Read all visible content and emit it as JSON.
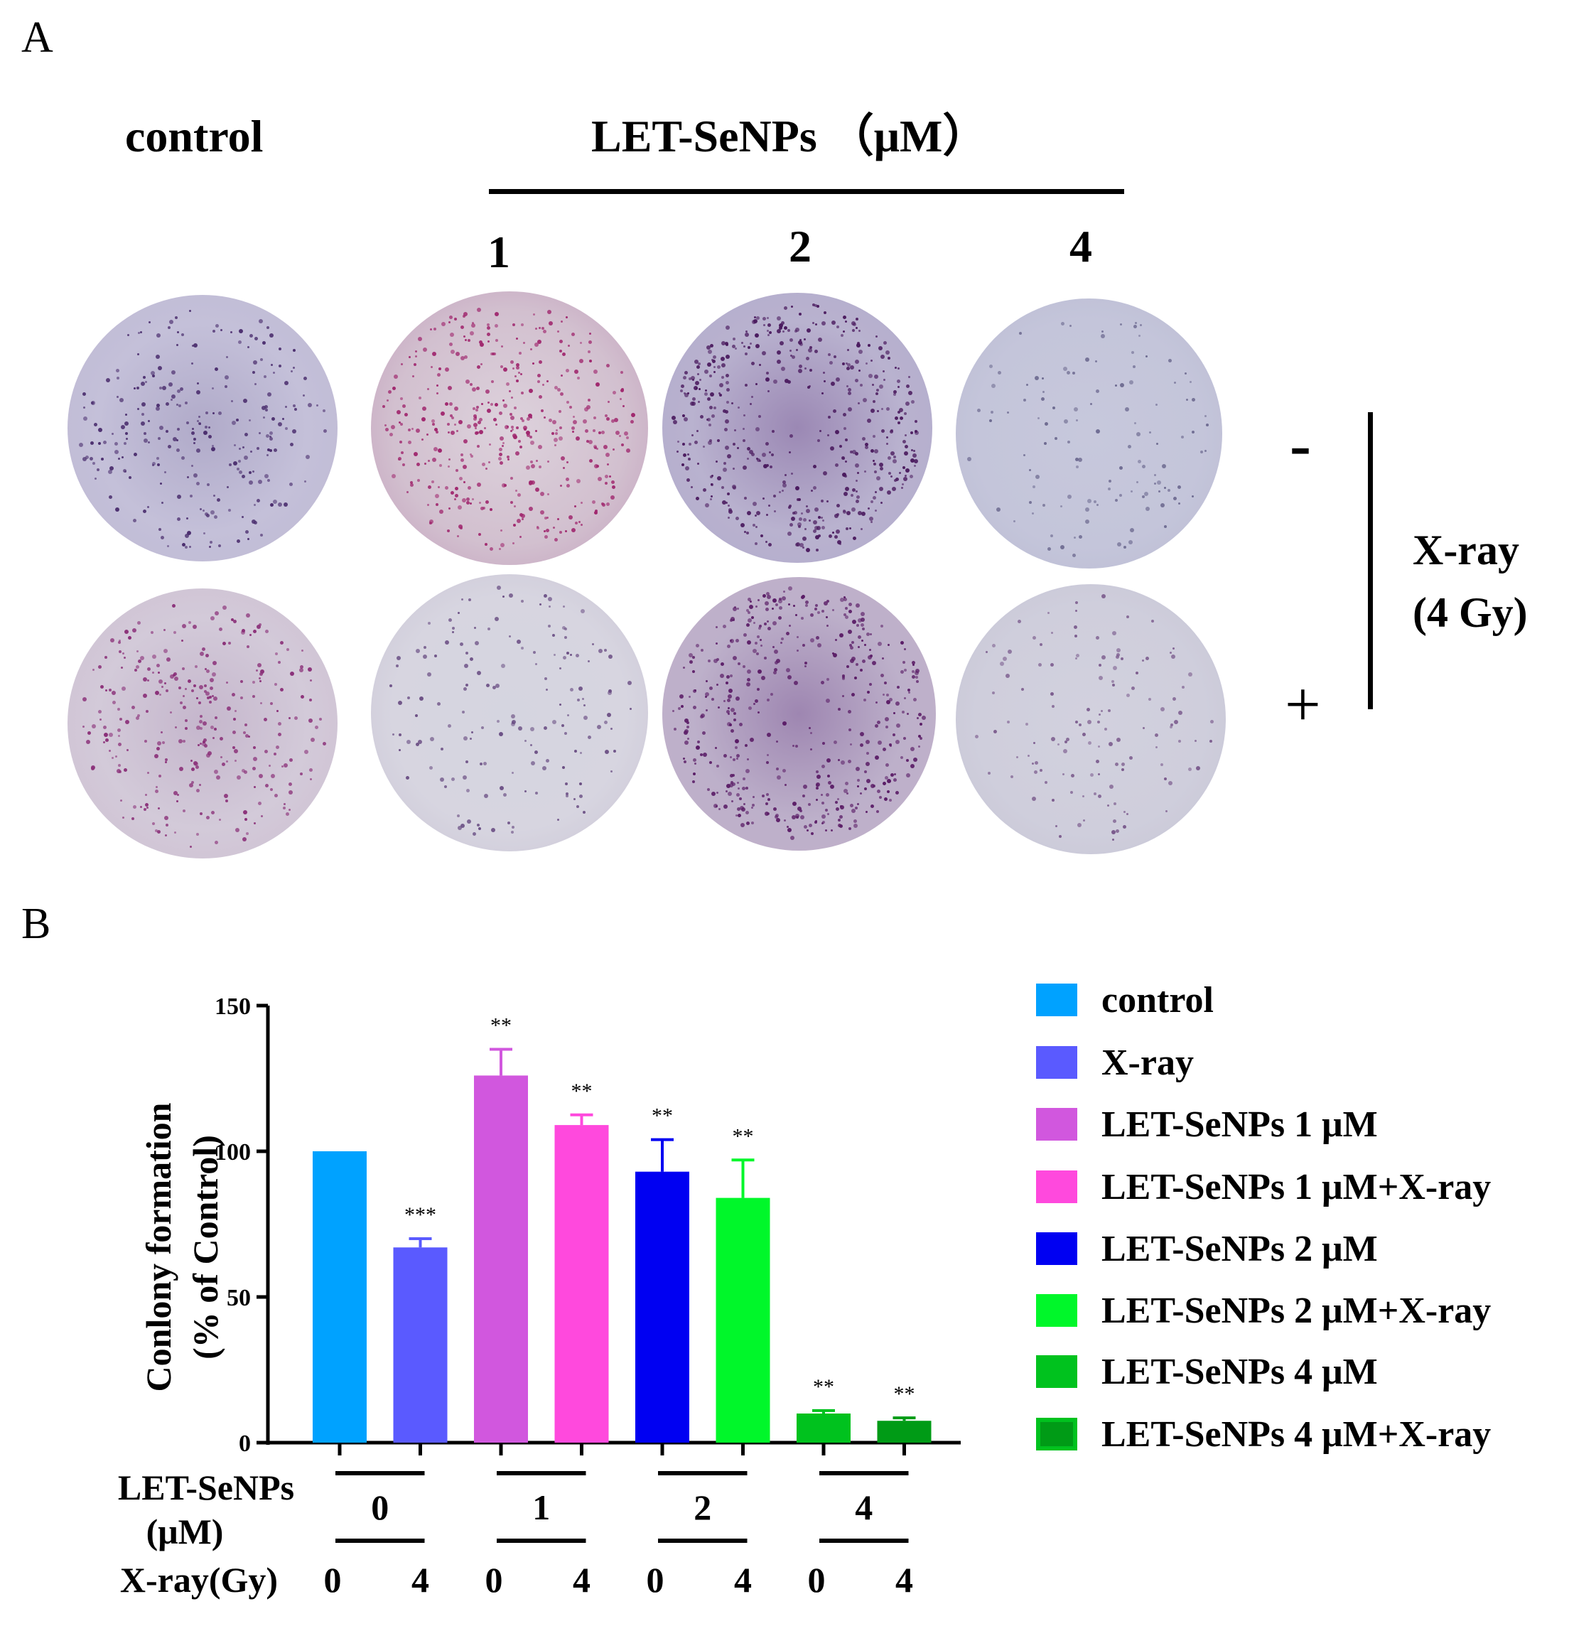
{
  "panel_a": {
    "letter": "A",
    "control_label": "control",
    "treatment_label": "LET-SeNPs （μM）",
    "conc_labels": [
      "1",
      "2",
      "4"
    ],
    "xray_minus": "-",
    "xray_plus": "+",
    "xray_label_line1": "X-ray",
    "xray_label_line2": "(4 Gy)"
  },
  "panel_b": {
    "letter": "B",
    "ylabel_line1": "Conlony formation",
    "ylabel_line2": "(% of Control)",
    "row_label_dose_line1": "LET-SeNPs",
    "row_label_dose_line2": "(μM)",
    "row_label_xray": "X-ray(Gy)",
    "dose_groups": [
      "0",
      "1",
      "2",
      "4"
    ],
    "xray_values": [
      "0",
      "4",
      "0",
      "4",
      "0",
      "4",
      "0",
      "4"
    ]
  },
  "chart_data": {
    "type": "bar",
    "ylabel": "Conlony formation (% of Control)",
    "ylim": [
      0,
      150
    ],
    "yticks": [
      0,
      50,
      100,
      150
    ],
    "categories": [
      "control",
      "X-ray",
      "LET-SeNPs 1 μM",
      "LET-SeNPs 1 μM+X-ray",
      "LET-SeNPs 2 μM",
      "LET-SeNPs 2 μM+X-ray",
      "LET-SeNPs 4 μM",
      "LET-SeNPs 4 μM+X-ray"
    ],
    "values": [
      100,
      67,
      126,
      109,
      93,
      84,
      10,
      7.5
    ],
    "errors": [
      0,
      3,
      9,
      3.5,
      11,
      13,
      1,
      1
    ],
    "significance": [
      "",
      "***",
      "**",
      "**",
      "**",
      "**",
      "**",
      "**"
    ],
    "colors": [
      "#00a2ff",
      "#5a5aff",
      "#d157de",
      "#ff49dd",
      "#0000f2",
      "#00f72a",
      "#00c21e",
      "#009b16"
    ],
    "legend": [
      "control",
      "X-ray",
      "LET-SeNPs 1 μM",
      "LET-SeNPs 1 μM+X-ray",
      "LET-SeNPs 2 μM",
      "LET-SeNPs 2 μM+X-ray",
      "LET-SeNPs 4 μM",
      "LET-SeNPs 4 μM+X-ray"
    ],
    "legend_position": "right"
  }
}
